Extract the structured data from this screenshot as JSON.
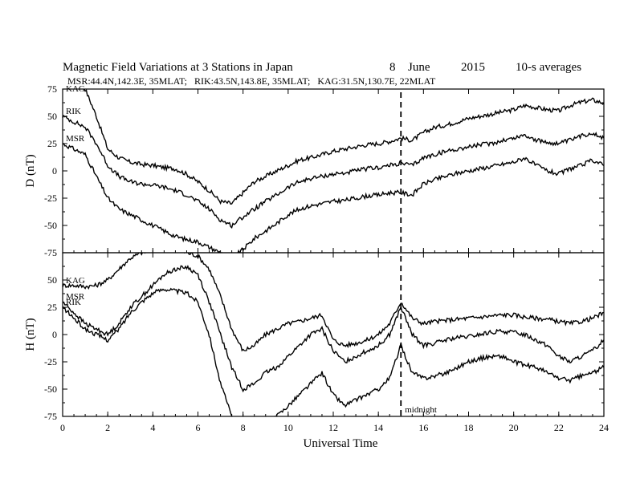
{
  "header": {
    "title": "Magnetic Field Variations at 3 Stations in Japan",
    "day": "8",
    "month": "June",
    "year": "2015",
    "resolution": "10-s averages",
    "stations_line": "MSR:44.4N,142.3E, 35MLAT;   RIK:43.5N,143.8E, 35MLAT;   KAG:31.5N,130.7E, 22MLAT"
  },
  "chart_data": {
    "type": "line",
    "xlabel": "Universal Time",
    "xlim": [
      0,
      24
    ],
    "x_ticks": [
      "0",
      "2",
      "4",
      "6",
      "8",
      "10",
      "12",
      "14",
      "16",
      "18",
      "20",
      "22",
      "24"
    ],
    "marker": {
      "x": 15,
      "label": "midnight",
      "style": "dashed"
    },
    "grid": false,
    "panels": [
      {
        "id": "D",
        "ylabel": "D (nT)",
        "ylim": [
          -75,
          75
        ],
        "y_ticks": [
          "75",
          "50",
          "25",
          "0",
          "-25",
          "-50",
          "-75"
        ],
        "series": [
          {
            "name": "KAG",
            "x": [
              0,
              0.5,
              1,
              1.5,
              2,
              2.5,
              3,
              3.5,
              4,
              4.5,
              5,
              5.5,
              6,
              6.5,
              7,
              7.5,
              8,
              8.5,
              9,
              9.5,
              10,
              10.5,
              11,
              11.5,
              12,
              12.5,
              13,
              13.5,
              14,
              14.5,
              15,
              15.5,
              16,
              16.5,
              17,
              17.5,
              18,
              18.5,
              19,
              19.5,
              20,
              20.5,
              21,
              21.5,
              22,
              22.5,
              23,
              23.5,
              24
            ],
            "y": [
              90,
              85,
              75,
              50,
              20,
              12,
              8,
              6,
              5,
              3,
              2,
              -3,
              -10,
              -18,
              -28,
              -30,
              -20,
              -10,
              -5,
              0,
              5,
              10,
              12,
              15,
              18,
              20,
              22,
              24,
              25,
              27,
              30,
              28,
              35,
              40,
              42,
              45,
              48,
              50,
              52,
              54,
              56,
              60,
              58,
              56,
              55,
              60,
              63,
              65,
              62
            ]
          },
          {
            "name": "RIK",
            "x": [
              0,
              0.5,
              1,
              1.5,
              2,
              2.5,
              3,
              3.5,
              4,
              4.5,
              5,
              5.5,
              6,
              6.5,
              7,
              7.5,
              8,
              8.5,
              9,
              9.5,
              10,
              10.5,
              11,
              11.5,
              12,
              12.5,
              13,
              13.5,
              14,
              14.5,
              15,
              15.5,
              16,
              16.5,
              17,
              17.5,
              18,
              18.5,
              19,
              19.5,
              20,
              20.5,
              21,
              21.5,
              22,
              22.5,
              23,
              23.5,
              24
            ],
            "y": [
              50,
              45,
              40,
              25,
              5,
              -5,
              -10,
              -12,
              -13,
              -15,
              -18,
              -22,
              -28,
              -35,
              -45,
              -50,
              -42,
              -35,
              -28,
              -22,
              -15,
              -10,
              -7,
              -5,
              -3,
              -2,
              0,
              2,
              3,
              5,
              7,
              5,
              12,
              15,
              18,
              20,
              22,
              24,
              25,
              28,
              30,
              33,
              28,
              26,
              25,
              28,
              32,
              35,
              30
            ]
          },
          {
            "name": "MSR",
            "x": [
              0,
              0.5,
              1,
              1.5,
              2,
              2.5,
              3,
              3.5,
              4,
              4.5,
              5,
              5.5,
              6,
              6.5,
              7,
              7.5,
              8,
              8.5,
              9,
              9.5,
              10,
              10.5,
              11,
              11.5,
              12,
              12.5,
              13,
              13.5,
              14,
              14.5,
              15,
              15.5,
              16,
              16.5,
              17,
              17.5,
              18,
              18.5,
              19,
              19.5,
              20,
              20.5,
              21,
              21.5,
              22,
              22.5,
              23,
              23.5,
              24
            ],
            "y": [
              25,
              20,
              15,
              -5,
              -25,
              -35,
              -40,
              -45,
              -50,
              -55,
              -60,
              -63,
              -65,
              -70,
              -75,
              -80,
              -72,
              -62,
              -55,
              -48,
              -40,
              -35,
              -32,
              -30,
              -28,
              -27,
              -25,
              -23,
              -22,
              -20,
              -20,
              -22,
              -12,
              -8,
              -5,
              -2,
              0,
              2,
              4,
              6,
              8,
              12,
              5,
              0,
              -3,
              2,
              5,
              10,
              5
            ]
          }
        ]
      },
      {
        "id": "H",
        "ylabel": "H (nT)",
        "ylim": [
          -75,
          75
        ],
        "y_ticks": [
          "75",
          "50",
          "25",
          "0",
          "-25",
          "-50",
          "-75"
        ],
        "series": [
          {
            "name": "KAG",
            "x": [
              0,
              0.5,
              1,
              1.5,
              2,
              2.5,
              3,
              3.5,
              4,
              4.5,
              5,
              5.5,
              6,
              6.5,
              7,
              7.5,
              8,
              8.5,
              9,
              9.5,
              10,
              10.5,
              11,
              11.5,
              12,
              12.5,
              13,
              13.5,
              14,
              14.5,
              15,
              15.5,
              16,
              16.5,
              17,
              17.5,
              18,
              18.5,
              19,
              19.5,
              20,
              20.5,
              21,
              21.5,
              22,
              22.5,
              23,
              23.5,
              24
            ],
            "y": [
              45,
              45,
              44,
              45,
              50,
              60,
              70,
              75,
              78,
              78,
              78,
              75,
              72,
              60,
              35,
              5,
              -15,
              -10,
              0,
              5,
              10,
              12,
              15,
              18,
              -5,
              -10,
              -8,
              -5,
              0,
              10,
              30,
              15,
              10,
              12,
              13,
              14,
              15,
              16,
              17,
              18,
              18,
              16,
              15,
              14,
              12,
              10,
              12,
              15,
              20
            ]
          },
          {
            "name": "MSR",
            "x": [
              0,
              0.5,
              1,
              1.5,
              2,
              2.5,
              3,
              3.5,
              4,
              4.5,
              5,
              5.5,
              6,
              6.5,
              7,
              7.5,
              8,
              8.5,
              9,
              9.5,
              10,
              10.5,
              11,
              11.5,
              12,
              12.5,
              13,
              13.5,
              14,
              14.5,
              15,
              15.5,
              16,
              16.5,
              17,
              17.5,
              18,
              18.5,
              19,
              19.5,
              20,
              20.5,
              21,
              21.5,
              22,
              22.5,
              23,
              23.5,
              24
            ],
            "y": [
              30,
              20,
              10,
              5,
              0,
              10,
              25,
              35,
              45,
              55,
              60,
              62,
              55,
              30,
              0,
              -30,
              -50,
              -45,
              -35,
              -30,
              -20,
              -10,
              0,
              5,
              -15,
              -25,
              -20,
              -15,
              -10,
              0,
              25,
              0,
              -10,
              -8,
              -5,
              -3,
              -2,
              0,
              2,
              3,
              2,
              0,
              -5,
              -10,
              -20,
              -25,
              -20,
              -15,
              -5
            ]
          },
          {
            "name": "RIK",
            "x": [
              0,
              0.5,
              1,
              1.5,
              2,
              2.5,
              3,
              3.5,
              4,
              4.5,
              5,
              5.5,
              6,
              6.5,
              7,
              7.5,
              8,
              8.5,
              9,
              9.5,
              10,
              10.5,
              11,
              11.5,
              12,
              12.5,
              13,
              13.5,
              14,
              14.5,
              15,
              15.5,
              16,
              16.5,
              17,
              17.5,
              18,
              18.5,
              19,
              19.5,
              20,
              20.5,
              21,
              21.5,
              22,
              22.5,
              23,
              23.5,
              24
            ],
            "y": [
              25,
              15,
              5,
              0,
              -5,
              5,
              20,
              30,
              38,
              42,
              40,
              38,
              30,
              0,
              -45,
              -75,
              -95,
              -90,
              -80,
              -75,
              -65,
              -55,
              -45,
              -35,
              -55,
              -65,
              -60,
              -55,
              -50,
              -40,
              -10,
              -35,
              -40,
              -38,
              -35,
              -30,
              -25,
              -22,
              -20,
              -20,
              -25,
              -28,
              -30,
              -35,
              -40,
              -42,
              -38,
              -35,
              -30
            ]
          }
        ]
      }
    ]
  }
}
